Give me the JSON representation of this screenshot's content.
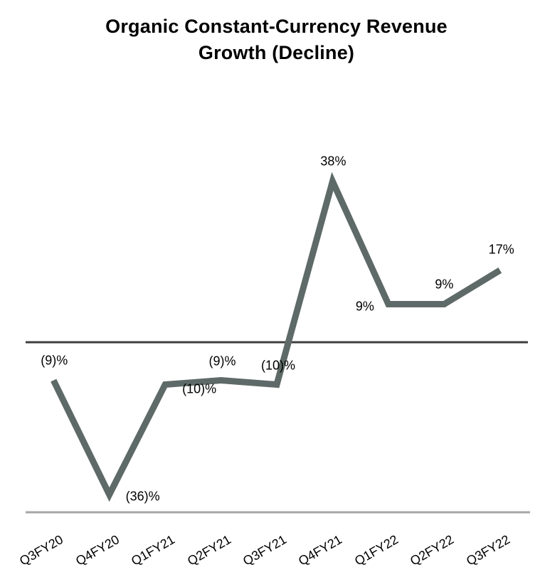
{
  "page": {
    "background": "#ffffff"
  },
  "header": {
    "title_line1": "Organic Constant-Currency Revenue",
    "title_line2": "Growth (Decline)"
  },
  "chart_data": {
    "type": "line",
    "title": "Organic Constant-Currency Revenue Growth (Decline)",
    "categories": [
      "Q3FY20",
      "Q4FY20",
      "Q1FY21",
      "Q2FY21",
      "Q3FY21",
      "Q4FY21",
      "Q1FY22",
      "Q2FY22",
      "Q3FY22"
    ],
    "values": [
      -9,
      -36,
      -10,
      -9,
      -10,
      38,
      9,
      9,
      17
    ],
    "labels": [
      "(9)%",
      "(36)%",
      "(10)%",
      "(9)%",
      "(10)%",
      "38%",
      "9%",
      "9%",
      "17%"
    ],
    "unit": "%",
    "ylim": [
      -40,
      45
    ],
    "axis_lines_at_values": [
      0,
      -40
    ],
    "grid": false,
    "legend": false,
    "x_label_rotation_deg": 30,
    "colors": {
      "line": "#5e6a67",
      "zero_axis": "#3f3f3f",
      "bottom_axis": "#a6a6a6",
      "text": "#000000"
    }
  }
}
